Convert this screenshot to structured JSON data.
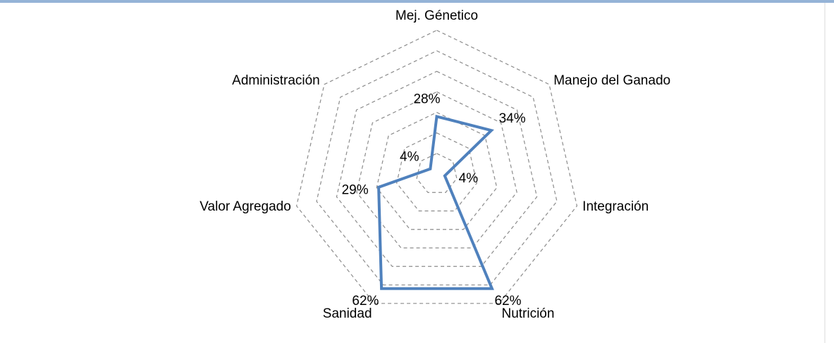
{
  "chart_data": {
    "type": "radar",
    "categories": [
      "Mej. Génetico",
      "Manejo del Ganado",
      "Integración",
      "Nutrición",
      "Sanidad",
      "Valor Agregado",
      "Administración"
    ],
    "values": [
      28,
      34,
      4,
      62,
      62,
      29,
      4
    ],
    "value_labels": [
      "28%",
      "34%",
      "4%",
      "62%",
      "62%",
      "29%",
      "4%"
    ],
    "color": "#4f81bd",
    "ylim": [
      0,
      70
    ],
    "yticks": [
      0,
      10,
      20,
      30,
      40,
      50,
      60,
      70
    ],
    "grid": true
  }
}
